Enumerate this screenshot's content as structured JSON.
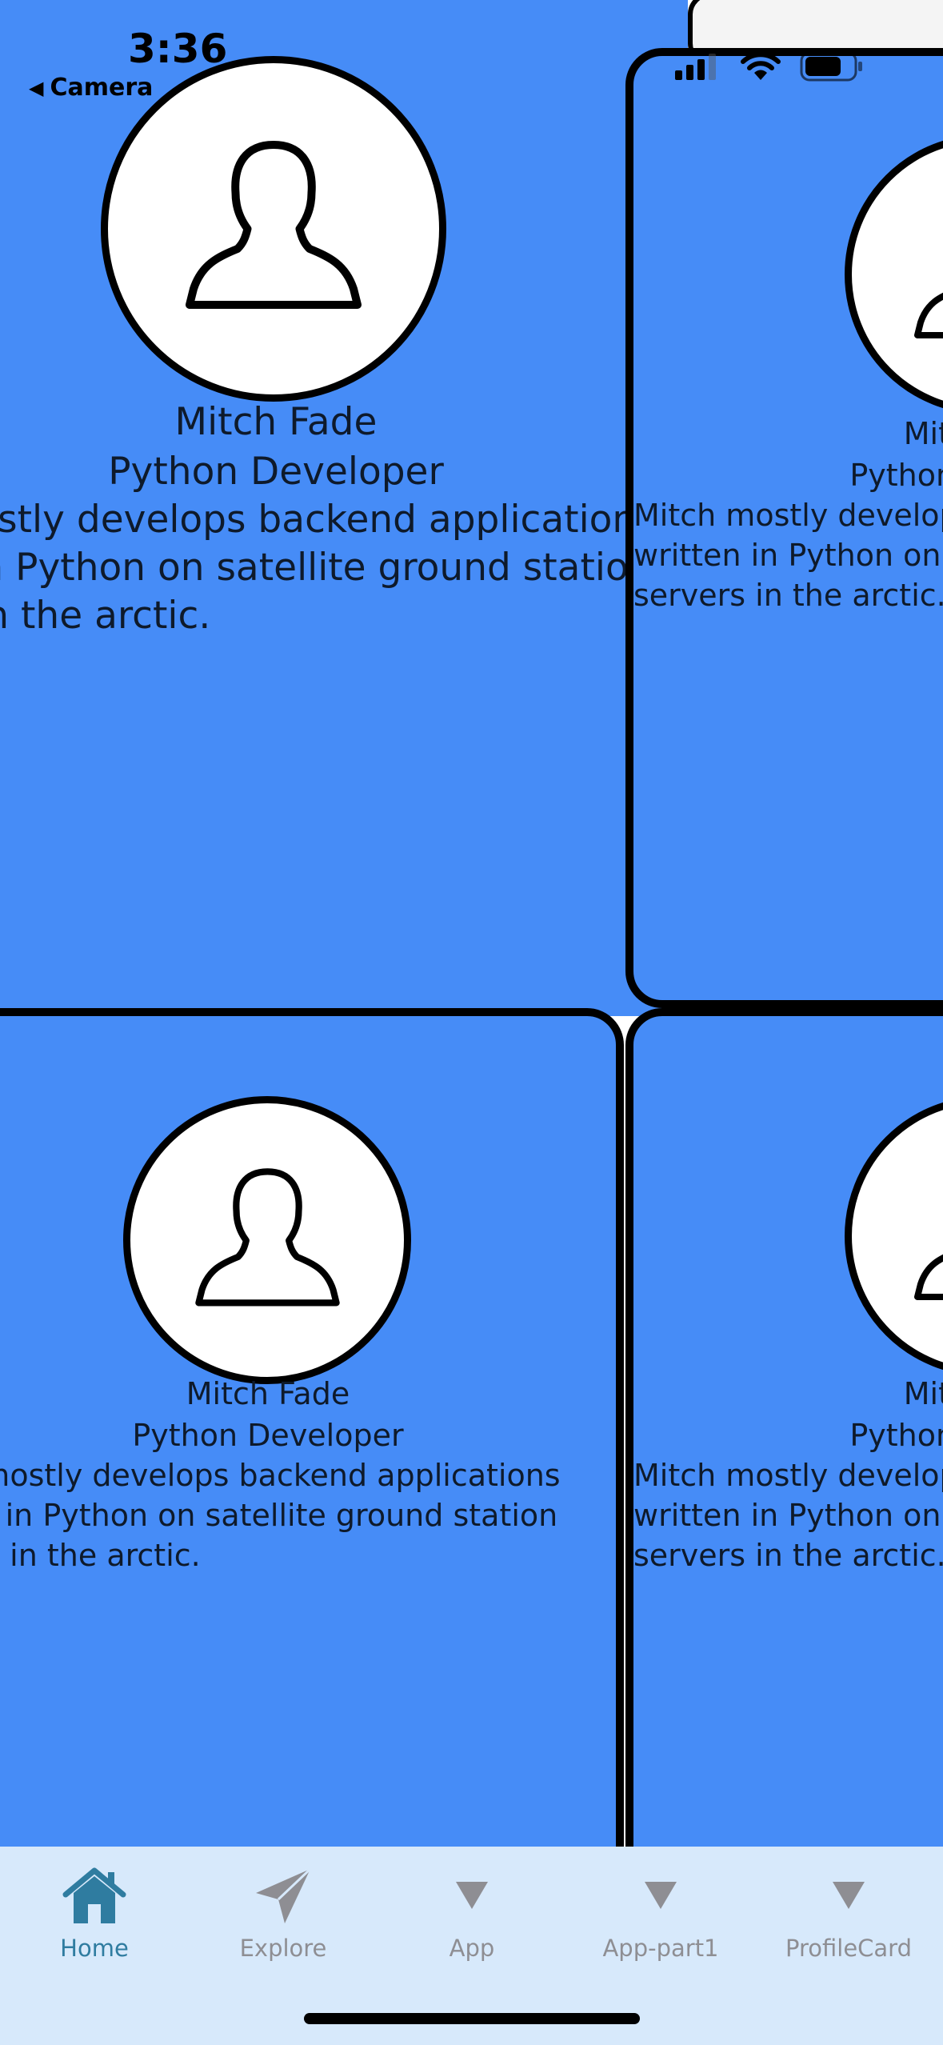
{
  "status_bar": {
    "time": "3:36",
    "back_label": "Camera"
  },
  "profile": {
    "name": "Mitch Fade",
    "role": "Python Developer",
    "bio_line1": "Mitch mostly develops backend applications",
    "bio_line2": "written in Python on satellite ground station",
    "bio_line3": "servers in the arctic."
  },
  "colors": {
    "card_background": "#468cf7",
    "tab_bar_background": "#d7e9fb",
    "tab_active": "#2f7ca0",
    "tab_inactive": "#8e8e93"
  },
  "tabs": [
    {
      "label": "Home",
      "icon": "house-icon",
      "active": true
    },
    {
      "label": "Explore",
      "icon": "paper-plane-icon",
      "active": false
    },
    {
      "label": "App",
      "icon": "triangle-down-icon",
      "active": false
    },
    {
      "label": "App-part1",
      "icon": "triangle-down-icon",
      "active": false
    },
    {
      "label": "ProfileCard",
      "icon": "triangle-down-icon",
      "active": false
    }
  ]
}
